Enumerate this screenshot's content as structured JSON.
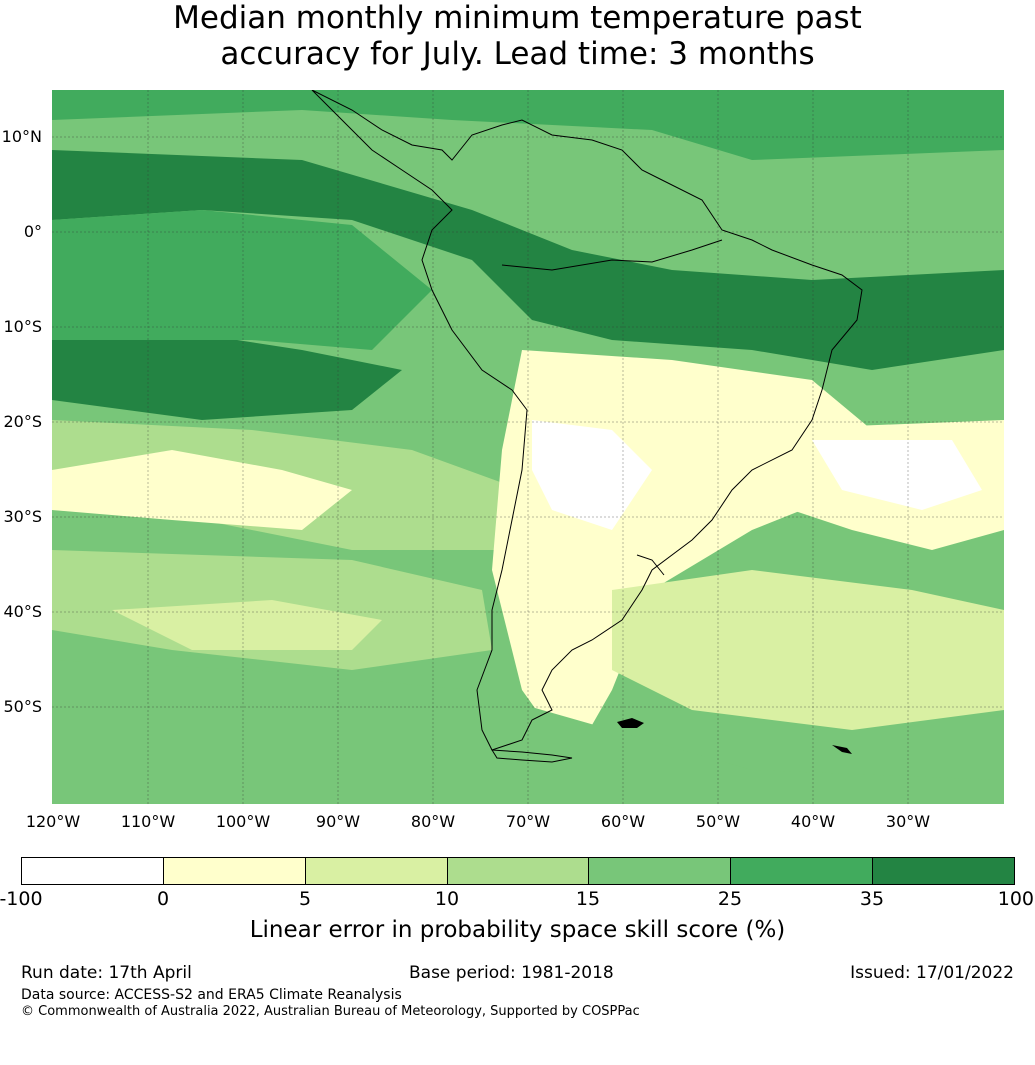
{
  "title_line1": "Median monthly minimum temperature past",
  "title_line2": "accuracy for July. Lead time: 3 months",
  "latitude_labels": [
    "10°N",
    "0°",
    "10°S",
    "20°S",
    "30°S",
    "40°S",
    "50°S"
  ],
  "longitude_labels": [
    "120°W",
    "110°W",
    "100°W",
    "90°W",
    "80°W",
    "70°W",
    "60°W",
    "50°W",
    "40°W",
    "30°W"
  ],
  "colorbar": {
    "label": "Linear error in probability space skill score (%)",
    "ticks": [
      "-100",
      "0",
      "5",
      "10",
      "15",
      "25",
      "35",
      "100"
    ],
    "colors": [
      "#ffffff",
      "#ffffcc",
      "#d9f0a3",
      "#addd8e",
      "#78c679",
      "#41ab5d",
      "#238443"
    ]
  },
  "footer": {
    "run_date": "Run date: 17th April",
    "base_period": "Base period: 1981-2018",
    "issued": "Issued: 17/01/2022",
    "data_source": "Data source: ACCESS-S2 and ERA5 Climate Reanalysis",
    "copyright": "© Commonwealth of Australia 2022, Australian Bureau of Meteorology, Supported by COSPPac"
  }
}
